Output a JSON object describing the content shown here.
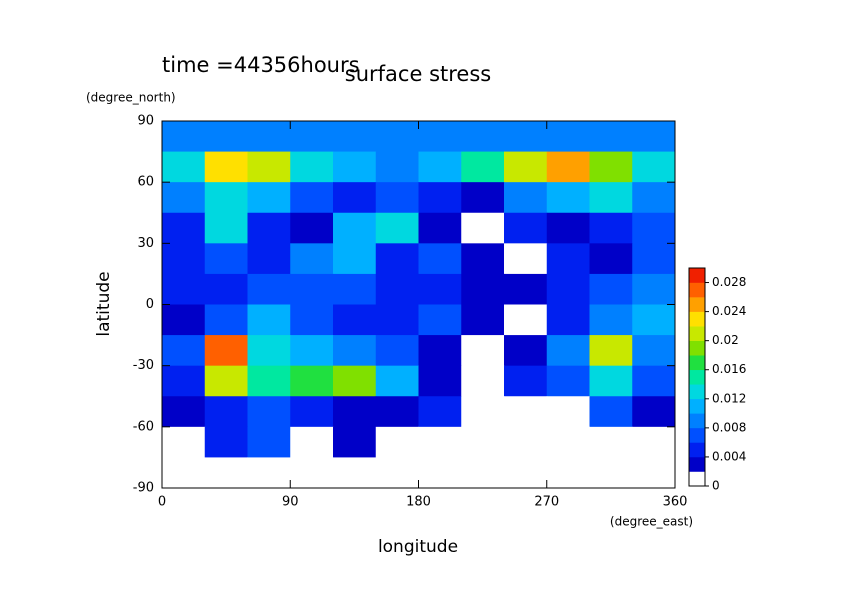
{
  "chart_data": {
    "type": "contour",
    "title": "surface stress",
    "subtitle": "time =44356hours",
    "x_label": "longitude",
    "y_label": "latitude",
    "x_unit": "(degree_east)",
    "y_unit": "(degree_north)",
    "xlim": [
      0,
      360
    ],
    "ylim": [
      -90,
      90
    ],
    "xticks": [
      0,
      90,
      180,
      270,
      360
    ],
    "yticks": [
      -90,
      -60,
      -30,
      0,
      30,
      60,
      90
    ],
    "x": [
      15,
      45,
      75,
      105,
      135,
      165,
      195,
      225,
      255,
      285,
      315,
      345
    ],
    "y": [
      82.5,
      67.5,
      52.5,
      37.5,
      22.5,
      7.5,
      -7.5,
      -22.5,
      -37.5,
      -52.5,
      -67.5,
      -82.5
    ],
    "z": [
      [
        0.008,
        0.008,
        0.008,
        0.008,
        0.008,
        0.008,
        0.008,
        0.008,
        0.008,
        0.008,
        0.008,
        0.008
      ],
      [
        0.012,
        0.022,
        0.02,
        0.012,
        0.01,
        0.008,
        0.01,
        0.014,
        0.02,
        0.024,
        0.018,
        0.012
      ],
      [
        0.008,
        0.012,
        0.01,
        0.006,
        0.004,
        0.006,
        0.004,
        0.003,
        0.008,
        0.01,
        0.012,
        0.008
      ],
      [
        0.004,
        0.012,
        0.004,
        0.002,
        0.01,
        0.012,
        0.002,
        0.0005,
        0.004,
        0.002,
        0.004,
        0.006
      ],
      [
        0.004,
        0.006,
        0.004,
        0.008,
        0.01,
        0.004,
        0.006,
        0.002,
        0.0005,
        0.004,
        0.002,
        0.006
      ],
      [
        0.004,
        0.004,
        0.006,
        0.006,
        0.006,
        0.004,
        0.004,
        0.002,
        0.002,
        0.004,
        0.006,
        0.008
      ],
      [
        0.002,
        0.006,
        0.01,
        0.006,
        0.004,
        0.004,
        0.006,
        0.002,
        0.0005,
        0.004,
        0.008,
        0.01
      ],
      [
        0.006,
        0.026,
        0.012,
        0.01,
        0.008,
        0.006,
        0.002,
        0.0005,
        0.002,
        0.008,
        0.02,
        0.008
      ],
      [
        0.004,
        0.02,
        0.014,
        0.016,
        0.018,
        0.01,
        0.002,
        0.0005,
        0.004,
        0.006,
        0.012,
        0.006
      ],
      [
        0.002,
        0.004,
        0.006,
        0.004,
        0.002,
        0.002,
        0.004,
        0.0005,
        0.0005,
        0.0005,
        0.006,
        0.002
      ],
      [
        0.0005,
        0.004,
        0.006,
        0.0005,
        0.002,
        0.0005,
        0.0005,
        0.0005,
        0.0005,
        0.0005,
        0.0005,
        0.0005
      ],
      [
        0,
        0,
        0,
        0,
        0,
        0,
        0,
        0,
        0,
        0,
        0,
        0
      ]
    ],
    "clim": [
      0,
      0.03
    ],
    "colors": [
      "#ffffff",
      "#0000c8",
      "#0020f0",
      "#0050ff",
      "#0080ff",
      "#00b0ff",
      "#00d8e0",
      "#00e8a0",
      "#20e040",
      "#80e000",
      "#c8e800",
      "#ffe000",
      "#ffa000",
      "#ff6000",
      "#f02000"
    ],
    "cticks": [
      0,
      0.004,
      0.008,
      0.012,
      0.016,
      0.02,
      0.024,
      0.028
    ]
  }
}
